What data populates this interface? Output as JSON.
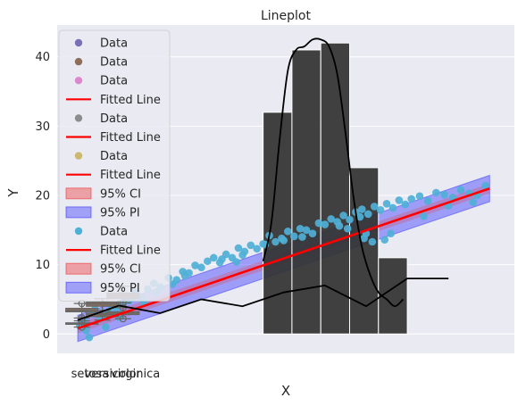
{
  "chart_data": {
    "type": "overlay",
    "title": "Lineplot",
    "xlabel": "X",
    "ylabel": "Y",
    "ylim": [
      -2.8,
      44.6
    ],
    "yticks": [
      0,
      10,
      20,
      30,
      40
    ],
    "xlim": [
      -0.5,
      10.6
    ],
    "categories": [
      "setosa",
      "versicolor",
      "virginica"
    ],
    "colors": {
      "background": "#eaeaf2",
      "grid": "#ffffff",
      "fit_line": "#ff0000",
      "ci_band": "#ee3333",
      "pi_band": "#3333ff",
      "hist_bar": "#333333",
      "line": "#000000",
      "scatter": "#4fb0d6",
      "box": "#666666"
    },
    "scatter": {
      "name": "Data",
      "x": [
        0.05,
        0.15,
        0.28,
        0.42,
        0.55,
        0.68,
        0.82,
        0.95,
        1.1,
        1.25,
        1.4,
        1.55,
        1.7,
        1.85,
        2.0,
        2.2,
        2.4,
        2.55,
        2.7,
        2.85,
        3.0,
        3.15,
        3.3,
        3.45,
        3.6,
        3.75,
        3.9,
        4.05,
        4.2,
        4.35,
        4.5,
        4.65,
        4.8,
        4.95,
        5.1,
        5.25,
        5.4,
        5.55,
        5.7,
        5.85,
        6.0,
        6.15,
        6.3,
        6.45,
        6.6,
        6.75,
        6.9,
        7.05,
        7.2,
        7.35,
        7.5,
        7.65,
        7.8,
        7.95,
        8.1,
        8.3,
        8.5,
        8.7,
        8.9,
        9.1,
        9.3,
        9.5,
        9.7,
        9.9,
        0.35,
        1.0,
        0.75,
        1.6,
        2.3,
        3.85,
        4.55,
        5.45,
        6.35,
        6.85,
        7.15,
        7.6,
        8.4,
        9.0,
        9.6,
        6.55,
        5.0,
        3.5,
        2.6,
        1.9,
        0.6,
        0.2,
        4.0,
        6.95,
        7.0,
        7.45
      ],
      "y": [
        1.2,
        2.0,
        -0.5,
        3.6,
        2.2,
        1.0,
        4.0,
        3.5,
        4.3,
        4.8,
        6.0,
        5.2,
        6.5,
        7.3,
        6.8,
        8.1,
        7.8,
        9.0,
        8.8,
        9.9,
        9.6,
        10.5,
        11.0,
        10.3,
        11.5,
        11.0,
        12.4,
        11.9,
        12.8,
        12.3,
        13.0,
        14.2,
        13.3,
        13.8,
        14.8,
        14.1,
        15.2,
        15.0,
        14.5,
        16.0,
        15.8,
        16.6,
        16.2,
        17.1,
        16.5,
        17.6,
        18.0,
        17.3,
        18.4,
        17.9,
        18.8,
        18.2,
        19.3,
        18.7,
        19.5,
        19.9,
        19.2,
        20.4,
        20.1,
        19.7,
        20.8,
        20.3,
        20.0,
        21.4,
        3.0,
        2.4,
        3.2,
        4.6,
        7.2,
        10.4,
        12.9,
        14.0,
        15.6,
        16.9,
        13.3,
        14.5,
        17.0,
        18.5,
        19.0,
        15.2,
        13.5,
        10.8,
        8.4,
        6.0,
        2.6,
        0.5,
        11.4,
        13.8,
        14.5,
        13.6
      ]
    },
    "fit": {
      "name": "Fitted Line",
      "x": [
        0.0,
        10.0
      ],
      "y": [
        0.8,
        21.0
      ]
    },
    "ci": {
      "name": "95% CI",
      "half_width": 0.7
    },
    "pi": {
      "name": "95% PI",
      "half_width": 1.9
    },
    "histogram": {
      "bins": [
        4.5,
        5.2,
        5.9,
        6.6,
        7.3,
        8.0
      ],
      "counts": [
        32,
        41,
        42,
        24,
        11
      ]
    },
    "density_curve": {
      "x": [
        4.5,
        4.7,
        4.9,
        5.1,
        5.3,
        5.5,
        5.7,
        5.9,
        6.1,
        6.3,
        6.5,
        6.7,
        6.9,
        7.1,
        7.3,
        7.5,
        7.7,
        7.9
      ],
      "y": [
        10.5,
        16,
        28,
        38,
        41,
        41.5,
        42.5,
        42.5,
        41.5,
        37.5,
        29,
        19.5,
        12.5,
        8.5,
        6,
        5,
        4,
        5
      ]
    },
    "black_line": {
      "x": [
        0.0,
        1.0,
        2.0,
        3.0,
        4.0,
        5.0,
        6.0,
        7.0,
        8.0,
        9.0
      ],
      "y": [
        2.0,
        4.1,
        3.0,
        5.0,
        4.0,
        6.0,
        7.0,
        4.0,
        8.0,
        8.0
      ]
    },
    "boxplots": [
      {
        "category": "setosa",
        "min": 1.0,
        "q1": 1.4,
        "median": 1.5,
        "q3": 1.6,
        "max": 1.9,
        "outliers": [
          1.0,
          2.0
        ],
        "color": "#8c6e5a"
      },
      {
        "category": "setosa",
        "min": 2.3,
        "q1": 3.2,
        "median": 3.4,
        "q3": 3.7,
        "max": 4.4,
        "outliers": [
          2.3,
          4.4
        ],
        "color": "#8c6e5a"
      },
      {
        "category": "versicolor",
        "min": 2.0,
        "q1": 2.5,
        "median": 2.8,
        "q3": 3.0,
        "max": 3.4,
        "outliers": [],
        "color": "#8c6e5a"
      },
      {
        "category": "versicolor",
        "min": 3.0,
        "q1": 4.0,
        "median": 4.35,
        "q3": 4.6,
        "max": 5.1,
        "outliers": [
          3.0
        ],
        "color": "#8c6e5a"
      },
      {
        "category": "virginica",
        "min": 2.2,
        "q1": 2.8,
        "median": 3.0,
        "q3": 3.2,
        "max": 3.8,
        "outliers": [
          2.2,
          3.8
        ],
        "color": "#8c6e5a"
      },
      {
        "category": "virginica",
        "min": 4.5,
        "q1": 5.1,
        "median": 5.55,
        "q3": 5.9,
        "max": 6.9,
        "outliers": [
          4.5
        ],
        "color": "#8c6e5a"
      }
    ],
    "legend": {
      "position": "upper-left",
      "items": [
        {
          "label": "Data",
          "kind": "dot",
          "color": "#7b6fb8"
        },
        {
          "label": "Data",
          "kind": "dot",
          "color": "#8c6e5a"
        },
        {
          "label": "Data",
          "kind": "dot",
          "color": "#dd88cc"
        },
        {
          "label": "Fitted Line",
          "kind": "line",
          "color": "#ff0000"
        },
        {
          "label": "Data",
          "kind": "dot",
          "color": "#8c8c8c"
        },
        {
          "label": "Fitted Line",
          "kind": "line",
          "color": "#ff0000"
        },
        {
          "label": "Data",
          "kind": "dot",
          "color": "#ccb86e"
        },
        {
          "label": "Fitted Line",
          "kind": "line",
          "color": "#ff0000"
        },
        {
          "label": "95% CI",
          "kind": "patch",
          "color": "#ee3333"
        },
        {
          "label": "95% PI",
          "kind": "patch",
          "color": "#3333ff"
        },
        {
          "label": "Data",
          "kind": "dot",
          "color": "#4fb0d6"
        },
        {
          "label": "Fitted Line",
          "kind": "line",
          "color": "#ff0000"
        },
        {
          "label": "95% CI",
          "kind": "patch",
          "color": "#ee3333"
        },
        {
          "label": "95% PI",
          "kind": "patch",
          "color": "#3333ff"
        }
      ]
    }
  }
}
